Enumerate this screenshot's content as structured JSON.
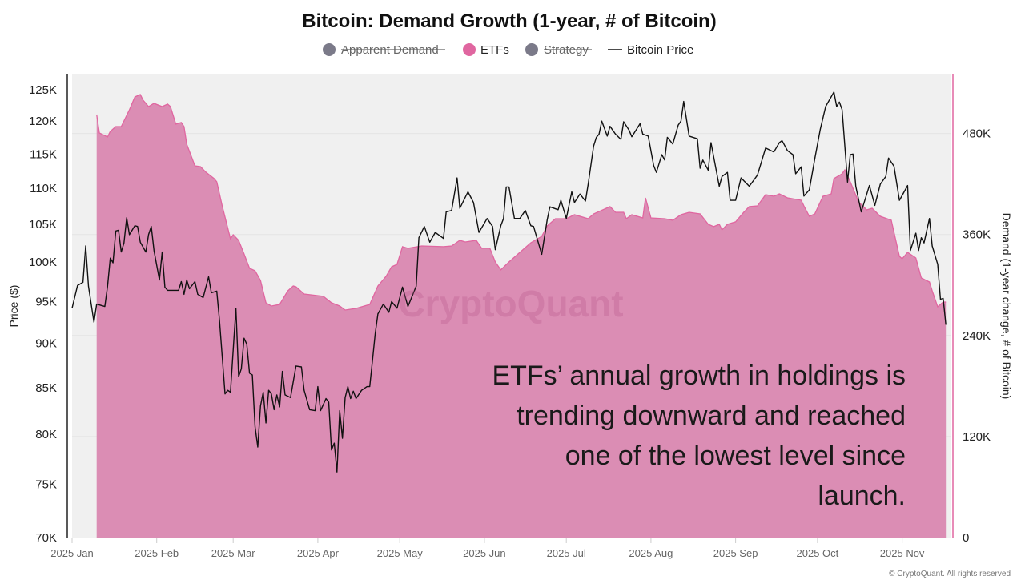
{
  "chart_data": {
    "type": "area+line",
    "title": "Bitcoin: Demand Growth (1-year, # of Bitcoin)",
    "legend": [
      {
        "name": "Apparent Demand",
        "color": "#7b7a89",
        "hidden": true,
        "marker": "circle"
      },
      {
        "name": "ETFs",
        "color": "#e066a0",
        "hidden": false,
        "marker": "circle"
      },
      {
        "name": "Strategy",
        "color": "#7b7a89",
        "hidden": true,
        "marker": "circle"
      },
      {
        "name": "Bitcoin Price",
        "color": "#111111",
        "hidden": false,
        "marker": "line"
      }
    ],
    "legend_placement": "top-center",
    "ylabel_left": "Price ($)",
    "ylabel_right": "Demand (1-year change, # of Bitcoin)",
    "y_left_scale": "log",
    "y_left_lim": [
      70000,
      127600
    ],
    "y_left_ticks": [
      70000,
      75000,
      80000,
      85000,
      90000,
      95000,
      100000,
      105000,
      110000,
      115000,
      120000,
      125000
    ],
    "y_left_tick_labels": [
      "70K",
      "75K",
      "80K",
      "85K",
      "90K",
      "95K",
      "100K",
      "105K",
      "110K",
      "115K",
      "120K",
      "125K"
    ],
    "y_right_lim": [
      0,
      551000
    ],
    "y_right_ticks": [
      0,
      120000,
      240000,
      360000,
      480000
    ],
    "y_right_tick_labels": [
      "0",
      "120K",
      "240K",
      "360K",
      "480K"
    ],
    "x_lim": [
      "2025-01-01",
      "2025-11-19"
    ],
    "x_ticks": [
      "2025-01-01",
      "2025-02-01",
      "2025-03-01",
      "2025-04-01",
      "2025-05-01",
      "2025-06-01",
      "2025-07-01",
      "2025-08-01",
      "2025-09-01",
      "2025-10-01",
      "2025-11-01"
    ],
    "x_tick_labels": [
      "2025 Jan",
      "2025 Feb",
      "2025 Mar",
      "2025 Apr",
      "2025 May",
      "2025 Jun",
      "2025 Jul",
      "2025 Aug",
      "2025 Sep",
      "2025 Oct",
      "2025 Nov"
    ],
    "grid": "horizontal",
    "series": [
      {
        "name": "ETFs",
        "axis": "right",
        "type": "area",
        "color": "#e066a0",
        "fill": "#db8db4",
        "x": [
          "2025-01-10",
          "2025-01-11",
          "2025-01-14",
          "2025-01-15",
          "2025-01-17",
          "2025-01-19",
          "2025-01-22",
          "2025-01-24",
          "2025-01-26",
          "2025-01-27",
          "2025-01-29",
          "2025-01-31",
          "2025-02-03",
          "2025-02-05",
          "2025-02-06",
          "2025-02-08",
          "2025-02-10",
          "2025-02-11",
          "2025-02-12",
          "2025-02-15",
          "2025-02-17",
          "2025-02-19",
          "2025-02-22",
          "2025-02-23",
          "2025-02-25",
          "2025-02-28",
          "2025-03-01",
          "2025-03-03",
          "2025-03-05",
          "2025-03-07",
          "2025-03-09",
          "2025-03-11",
          "2025-03-13",
          "2025-03-15",
          "2025-03-18",
          "2025-03-21",
          "2025-03-23",
          "2025-03-24",
          "2025-03-27",
          "2025-04-03",
          "2025-04-06",
          "2025-04-09",
          "2025-04-11",
          "2025-04-15",
          "2025-04-20",
          "2025-04-23",
          "2025-04-26",
          "2025-04-28",
          "2025-04-30",
          "2025-05-02",
          "2025-05-04",
          "2025-05-09",
          "2025-05-17",
          "2025-05-20",
          "2025-05-23",
          "2025-05-25",
          "2025-05-29",
          "2025-05-31",
          "2025-06-03",
          "2025-06-05",
          "2025-06-07",
          "2025-06-10",
          "2025-06-14",
          "2025-06-18",
          "2025-06-22",
          "2025-06-24",
          "2025-06-27",
          "2025-07-01",
          "2025-07-04",
          "2025-07-09",
          "2025-07-11",
          "2025-07-17",
          "2025-07-19",
          "2025-07-22",
          "2025-07-23",
          "2025-07-25",
          "2025-07-29",
          "2025-07-30",
          "2025-08-01",
          "2025-08-06",
          "2025-08-09",
          "2025-08-12",
          "2025-08-15",
          "2025-08-19",
          "2025-08-22",
          "2025-08-24",
          "2025-08-26",
          "2025-08-27",
          "2025-08-29",
          "2025-09-01",
          "2025-09-04",
          "2025-09-06",
          "2025-09-09",
          "2025-09-12",
          "2025-09-15",
          "2025-09-17",
          "2025-09-20",
          "2025-09-25",
          "2025-09-26",
          "2025-09-28",
          "2025-09-30",
          "2025-10-03",
          "2025-10-06",
          "2025-10-07",
          "2025-10-10",
          "2025-10-11",
          "2025-10-13",
          "2025-10-16",
          "2025-10-19",
          "2025-10-21",
          "2025-10-24",
          "2025-10-28",
          "2025-10-31",
          "2025-11-01",
          "2025-11-03",
          "2025-11-06",
          "2025-11-08",
          "2025-11-11",
          "2025-11-12",
          "2025-11-14",
          "2025-11-16",
          "2025-11-17"
        ],
        "values": [
          502500,
          480600,
          475900,
          482500,
          488200,
          488200,
          508200,
          523400,
          526300,
          519600,
          512000,
          515800,
          512000,
          514900,
          512000,
          491100,
          493000,
          488200,
          467300,
          441600,
          440600,
          434000,
          426400,
          422600,
          394000,
          355000,
          359700,
          353100,
          336900,
          319800,
          316900,
          305500,
          278900,
          275000,
          276900,
          293100,
          298800,
          297900,
          289300,
          286500,
          278900,
          275000,
          270300,
          272200,
          276900,
          298800,
          310300,
          321700,
          324500,
          345500,
          343600,
          346400,
          345500,
          346400,
          353100,
          351200,
          353100,
          343600,
          343600,
          327400,
          317900,
          327400,
          338800,
          350200,
          357800,
          370200,
          378800,
          378800,
          383500,
          378800,
          384500,
          393100,
          386400,
          386400,
          378800,
          383500,
          379700,
          403500,
          379700,
          378800,
          376900,
          383500,
          386400,
          384500,
          372100,
          369300,
          372100,
          365500,
          372100,
          375000,
          386400,
          393100,
          394000,
          407300,
          405400,
          408300,
          403500,
          400700,
          394000,
          381600,
          384500,
          405400,
          408300,
          426400,
          432100,
          436800,
          422600,
          398800,
          389200,
          391100,
          381600,
          376900,
          334000,
          331200,
          338800,
          332100,
          308400,
          303600,
          293100,
          274100,
          279800,
          279800
        ]
      },
      {
        "name": "Bitcoin Price",
        "axis": "left",
        "type": "line",
        "color": "#111111",
        "x": [
          "2025-01-01",
          "2025-01-03",
          "2025-01-05",
          "2025-01-06",
          "2025-01-07",
          "2025-01-09",
          "2025-01-10",
          "2025-01-13",
          "2025-01-14",
          "2025-01-15",
          "2025-01-16",
          "2025-01-17",
          "2025-01-18",
          "2025-01-19",
          "2025-01-20",
          "2025-01-21",
          "2025-01-22",
          "2025-01-24",
          "2025-01-25",
          "2025-01-26",
          "2025-01-28",
          "2025-01-29",
          "2025-01-30",
          "2025-01-31",
          "2025-02-02",
          "2025-02-03",
          "2025-02-04",
          "2025-02-05",
          "2025-02-09",
          "2025-02-10",
          "2025-02-11",
          "2025-02-12",
          "2025-02-13",
          "2025-02-15",
          "2025-02-16",
          "2025-02-18",
          "2025-02-20",
          "2025-02-21",
          "2025-02-23",
          "2025-02-24",
          "2025-02-26",
          "2025-02-27",
          "2025-02-28",
          "2025-03-02",
          "2025-03-03",
          "2025-03-04",
          "2025-03-05",
          "2025-03-06",
          "2025-03-07",
          "2025-03-08",
          "2025-03-09",
          "2025-03-10",
          "2025-03-11",
          "2025-03-12",
          "2025-03-13",
          "2025-03-14",
          "2025-03-15",
          "2025-03-16",
          "2025-03-17",
          "2025-03-18",
          "2025-03-19",
          "2025-03-20",
          "2025-03-22",
          "2025-03-24",
          "2025-03-26",
          "2025-03-27",
          "2025-03-29",
          "2025-03-31",
          "2025-04-01",
          "2025-04-02",
          "2025-04-04",
          "2025-04-05",
          "2025-04-06",
          "2025-04-07",
          "2025-04-08",
          "2025-04-09",
          "2025-04-10",
          "2025-04-11",
          "2025-04-12",
          "2025-04-13",
          "2025-04-14",
          "2025-04-15",
          "2025-04-17",
          "2025-04-19",
          "2025-04-20",
          "2025-04-21",
          "2025-04-22",
          "2025-04-23",
          "2025-04-25",
          "2025-04-27",
          "2025-04-28",
          "2025-04-30",
          "2025-05-02",
          "2025-05-04",
          "2025-05-07",
          "2025-05-08",
          "2025-05-10",
          "2025-05-12",
          "2025-05-14",
          "2025-05-17",
          "2025-05-18",
          "2025-05-20",
          "2025-05-22",
          "2025-05-23",
          "2025-05-26",
          "2025-05-28",
          "2025-05-30",
          "2025-06-02",
          "2025-06-04",
          "2025-06-05",
          "2025-06-07",
          "2025-06-08",
          "2025-06-09",
          "2025-06-10",
          "2025-06-12",
          "2025-06-14",
          "2025-06-16",
          "2025-06-18",
          "2025-06-19",
          "2025-06-22",
          "2025-06-24",
          "2025-06-25",
          "2025-06-28",
          "2025-06-29",
          "2025-07-01",
          "2025-07-03",
          "2025-07-04",
          "2025-07-06",
          "2025-07-08",
          "2025-07-09",
          "2025-07-11",
          "2025-07-12",
          "2025-07-13",
          "2025-07-14",
          "2025-07-16",
          "2025-07-17",
          "2025-07-19",
          "2025-07-21",
          "2025-07-22",
          "2025-07-24",
          "2025-07-25",
          "2025-07-28",
          "2025-07-29",
          "2025-07-31",
          "2025-08-02",
          "2025-08-03",
          "2025-08-05",
          "2025-08-06",
          "2025-08-07",
          "2025-08-09",
          "2025-08-11",
          "2025-08-12",
          "2025-08-13",
          "2025-08-15",
          "2025-08-18",
          "2025-08-19",
          "2025-08-20",
          "2025-08-22",
          "2025-08-23",
          "2025-08-26",
          "2025-08-27",
          "2025-08-29",
          "2025-08-30",
          "2025-09-01",
          "2025-09-03",
          "2025-09-06",
          "2025-09-09",
          "2025-09-12",
          "2025-09-15",
          "2025-09-17",
          "2025-09-18",
          "2025-09-20",
          "2025-09-22",
          "2025-09-23",
          "2025-09-25",
          "2025-09-26",
          "2025-09-28",
          "2025-09-30",
          "2025-10-02",
          "2025-10-04",
          "2025-10-07",
          "2025-10-08",
          "2025-10-09",
          "2025-10-10",
          "2025-10-12",
          "2025-10-13",
          "2025-10-14",
          "2025-10-15",
          "2025-10-17",
          "2025-10-20",
          "2025-10-22",
          "2025-10-24",
          "2025-10-26",
          "2025-10-27",
          "2025-10-29",
          "2025-10-31",
          "2025-11-03",
          "2025-11-04",
          "2025-11-06",
          "2025-11-07",
          "2025-11-08",
          "2025-11-09",
          "2025-11-11",
          "2025-11-12",
          "2025-11-14",
          "2025-11-15",
          "2025-11-16",
          "2025-11-17"
        ],
        "values": [
          94200,
          97000,
          97400,
          102100,
          96900,
          92500,
          94700,
          94400,
          96900,
          100500,
          99900,
          104100,
          104200,
          101300,
          102500,
          105900,
          103600,
          104800,
          104700,
          102600,
          101300,
          103600,
          104700,
          101500,
          97700,
          101300,
          96800,
          96400,
          96400,
          97500,
          95900,
          97700,
          96600,
          97500,
          95900,
          95500,
          98100,
          96100,
          96300,
          92700,
          84300,
          84700,
          84500,
          94200,
          86200,
          87100,
          90600,
          89900,
          86600,
          86400,
          80800,
          78700,
          83000,
          84500,
          81200,
          84700,
          84300,
          82600,
          84200,
          82900,
          86800,
          84200,
          83900,
          87400,
          87300,
          84700,
          82600,
          82500,
          85100,
          82500,
          83800,
          83400,
          78400,
          79100,
          76200,
          82500,
          79600,
          83900,
          85100,
          83800,
          84600,
          83800,
          84700,
          85100,
          85100,
          88000,
          91100,
          93500,
          94700,
          93700,
          95000,
          94200,
          96800,
          94400,
          96900,
          103200,
          104700,
          102600,
          103900,
          103100,
          106700,
          106900,
          111500,
          107200,
          109500,
          108000,
          103900,
          105800,
          104700,
          101600,
          104800,
          105800,
          110200,
          110200,
          105800,
          105800,
          106900,
          104800,
          104700,
          101000,
          105600,
          107400,
          107000,
          108300,
          105800,
          109500,
          108000,
          109200,
          108200,
          110600,
          116200,
          117500,
          118000,
          120000,
          117700,
          119200,
          118000,
          117200,
          119900,
          118600,
          117600,
          119600,
          118000,
          117700,
          113300,
          112300,
          114900,
          114100,
          117500,
          116500,
          119400,
          120000,
          123100,
          117700,
          117300,
          112900,
          114100,
          112600,
          116700,
          110300,
          111700,
          112300,
          108300,
          108300,
          111500,
          110300,
          111900,
          115900,
          115300,
          116700,
          117000,
          115500,
          114900,
          112100,
          113100,
          108900,
          109800,
          114300,
          118700,
          122300,
          124600,
          122300,
          123000,
          121800,
          110900,
          114900,
          115000,
          110300,
          106700,
          110400,
          107600,
          110600,
          111700,
          114400,
          113200,
          108300,
          110400,
          101500,
          103800,
          101500,
          103200,
          102500,
          105800,
          102100,
          99700,
          95300,
          95400,
          92200
        ]
      }
    ],
    "watermark": "CryptoQuant",
    "annotation_lines": [
      "ETFs’ annual growth in holdings is",
      "trending downward and reached",
      "one of the lowest level since",
      "launch."
    ],
    "copyright": "© CryptoQuant. All rights reserved"
  }
}
